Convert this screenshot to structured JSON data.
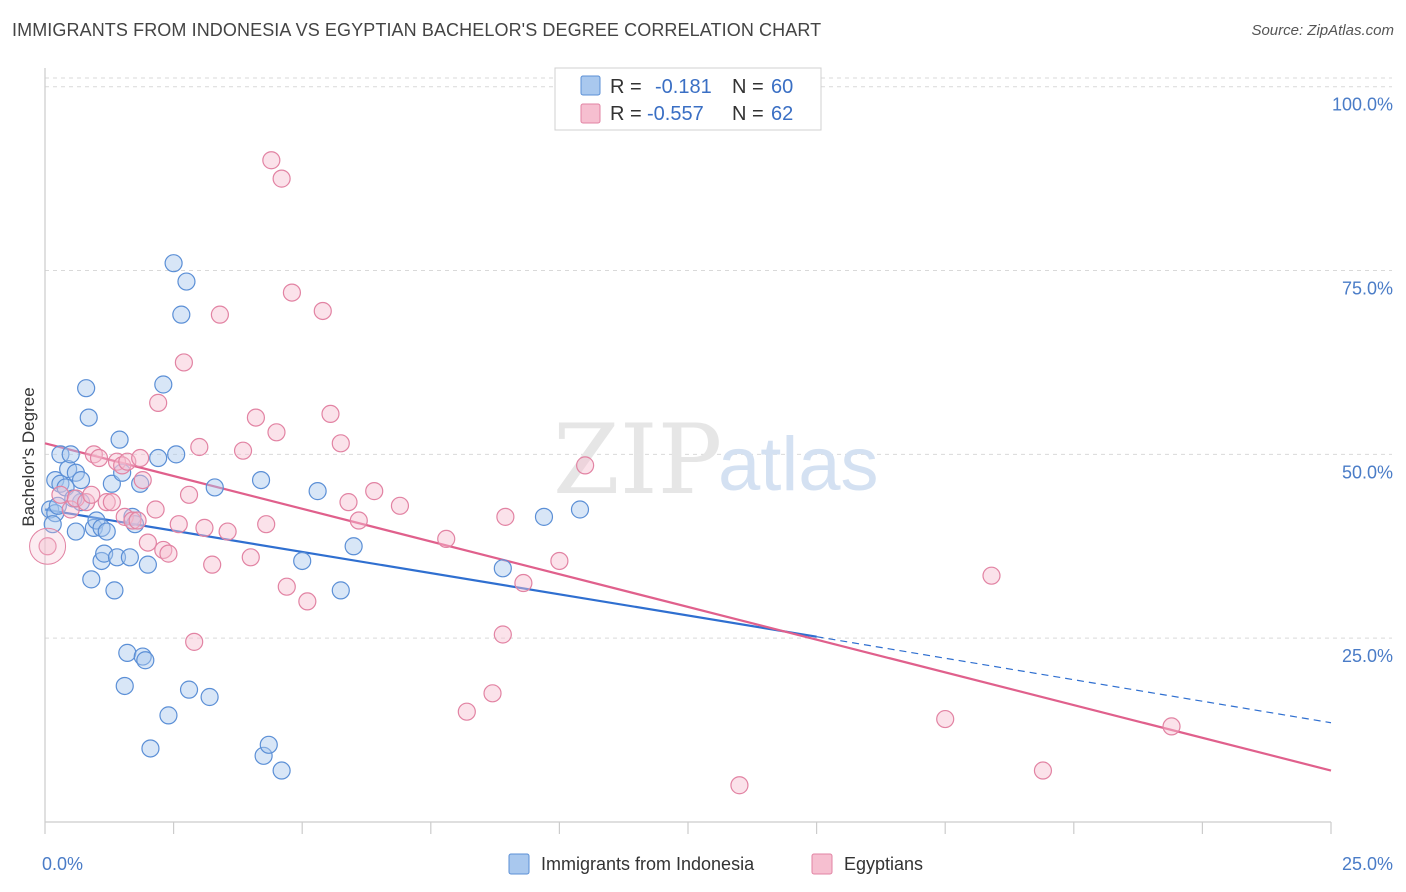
{
  "title": "IMMIGRANTS FROM INDONESIA VS EGYPTIAN BACHELOR'S DEGREE CORRELATION CHART",
  "source": "Source: ZipAtlas.com",
  "watermark": {
    "zip": "ZIP",
    "atlas": "atlas"
  },
  "colors": {
    "blue_fill": "#a9c8ee",
    "blue_stroke": "#5b8fd6",
    "blue_line": "#2f6fd0",
    "pink_fill": "#f6bfd0",
    "pink_stroke": "#e283a3",
    "pink_line": "#e0608c",
    "grid": "#d9d9d9",
    "axis_text": "#4a7cc7"
  },
  "legend": {
    "rows": [
      {
        "r_label": "R =",
        "r_value": "-0.181",
        "n_label": "N =",
        "n_value": "60"
      },
      {
        "r_label": "R =",
        "r_value": "-0.557",
        "n_label": "N =",
        "n_value": "62"
      }
    ]
  },
  "chart_data": {
    "type": "scatter",
    "title": "IMMIGRANTS FROM INDONESIA VS EGYPTIAN BACHELOR'S DEGREE CORRELATION CHART",
    "xlabel": "",
    "ylabel": "Bachelor's Degree",
    "xlim": [
      0,
      25
    ],
    "ylim": [
      0,
      102
    ],
    "x_ticks": [
      {
        "value": 0,
        "label": "0.0%"
      },
      {
        "value": 25,
        "label": "25.0%"
      }
    ],
    "y_ticks": [
      {
        "value": 25,
        "label": "25.0%"
      },
      {
        "value": 50,
        "label": "50.0%"
      },
      {
        "value": 75,
        "label": "75.0%"
      },
      {
        "value": 100,
        "label": "100.0%"
      }
    ],
    "grid": true,
    "legend_position": "top-center",
    "series": [
      {
        "name": "Immigrants from Indonesia",
        "color": "blue",
        "trend": {
          "x0": 0,
          "y0": 42.5,
          "x1": 15,
          "y1": 25.2,
          "x_solid_end": 15,
          "x_dashed_end": 25,
          "y_dashed_end": 13.5
        },
        "points": [
          [
            0.1,
            42.5
          ],
          [
            0.2,
            42
          ],
          [
            0.2,
            46.5
          ],
          [
            0.3,
            50
          ],
          [
            0.3,
            46
          ],
          [
            0.4,
            45.5
          ],
          [
            0.45,
            48
          ],
          [
            0.5,
            50
          ],
          [
            0.6,
            47.5
          ],
          [
            0.6,
            39.5
          ],
          [
            0.7,
            43.5
          ],
          [
            0.7,
            46.5
          ],
          [
            0.8,
            59
          ],
          [
            0.85,
            55
          ],
          [
            0.9,
            33
          ],
          [
            0.95,
            40
          ],
          [
            1.0,
            41
          ],
          [
            1.1,
            40
          ],
          [
            1.1,
            35.5
          ],
          [
            1.15,
            36.5
          ],
          [
            1.2,
            39.5
          ],
          [
            1.3,
            46
          ],
          [
            1.35,
            31.5
          ],
          [
            1.4,
            36
          ],
          [
            1.45,
            52
          ],
          [
            1.5,
            47.5
          ],
          [
            1.55,
            18.5
          ],
          [
            1.6,
            23
          ],
          [
            1.65,
            36
          ],
          [
            1.7,
            41.5
          ],
          [
            1.75,
            40.5
          ],
          [
            1.85,
            46
          ],
          [
            1.9,
            22.5
          ],
          [
            1.95,
            22
          ],
          [
            2.0,
            35
          ],
          [
            2.05,
            10
          ],
          [
            2.2,
            49.5
          ],
          [
            2.3,
            59.5
          ],
          [
            2.4,
            14.5
          ],
          [
            2.5,
            76
          ],
          [
            2.55,
            50
          ],
          [
            2.65,
            69
          ],
          [
            2.75,
            73.5
          ],
          [
            2.8,
            18
          ],
          [
            3.2,
            17
          ],
          [
            3.3,
            45.5
          ],
          [
            4.2,
            46.5
          ],
          [
            4.25,
            9
          ],
          [
            4.35,
            10.5
          ],
          [
            4.6,
            7
          ],
          [
            5.0,
            35.5
          ],
          [
            5.3,
            45
          ],
          [
            5.75,
            31.5
          ],
          [
            6.0,
            37.5
          ],
          [
            8.9,
            34.5
          ],
          [
            9.7,
            41.5
          ],
          [
            10.4,
            42.5
          ],
          [
            0.15,
            40.5
          ],
          [
            0.25,
            43
          ],
          [
            0.55,
            44
          ]
        ]
      },
      {
        "name": "Egyptians",
        "color": "pink",
        "trend": {
          "x0": 0,
          "y0": 51.5,
          "x1": 25,
          "y1": 7
        },
        "points": [
          [
            0.05,
            37.5
          ],
          [
            0.3,
            44.5
          ],
          [
            0.5,
            42.5
          ],
          [
            0.6,
            44
          ],
          [
            0.8,
            43.5
          ],
          [
            0.9,
            44.5
          ],
          [
            0.95,
            50
          ],
          [
            1.05,
            49.5
          ],
          [
            1.2,
            43.5
          ],
          [
            1.3,
            43.5
          ],
          [
            1.4,
            49
          ],
          [
            1.5,
            48.5
          ],
          [
            1.55,
            41.5
          ],
          [
            1.6,
            49
          ],
          [
            1.7,
            41
          ],
          [
            1.8,
            41
          ],
          [
            1.85,
            49.5
          ],
          [
            1.9,
            46.5
          ],
          [
            2.0,
            38
          ],
          [
            2.15,
            42.5
          ],
          [
            2.2,
            57
          ],
          [
            2.3,
            37
          ],
          [
            2.4,
            36.5
          ],
          [
            2.6,
            40.5
          ],
          [
            2.7,
            62.5
          ],
          [
            2.8,
            44.5
          ],
          [
            2.9,
            24.5
          ],
          [
            3.0,
            51
          ],
          [
            3.1,
            40
          ],
          [
            3.25,
            35
          ],
          [
            3.4,
            69
          ],
          [
            3.55,
            39.5
          ],
          [
            3.85,
            50.5
          ],
          [
            4.0,
            36
          ],
          [
            4.1,
            55
          ],
          [
            4.3,
            40.5
          ],
          [
            4.4,
            90
          ],
          [
            4.5,
            53
          ],
          [
            4.6,
            87.5
          ],
          [
            4.7,
            32
          ],
          [
            4.8,
            72
          ],
          [
            5.1,
            30
          ],
          [
            5.4,
            69.5
          ],
          [
            5.55,
            55.5
          ],
          [
            5.75,
            51.5
          ],
          [
            5.9,
            43.5
          ],
          [
            6.1,
            41
          ],
          [
            6.4,
            45
          ],
          [
            6.9,
            43
          ],
          [
            7.8,
            38.5
          ],
          [
            8.2,
            15
          ],
          [
            8.7,
            17.5
          ],
          [
            8.9,
            25.5
          ],
          [
            8.95,
            41.5
          ],
          [
            9.3,
            32.5
          ],
          [
            10.0,
            35.5
          ],
          [
            10.5,
            48.5
          ],
          [
            13.5,
            5
          ],
          [
            17.5,
            14
          ],
          [
            18.4,
            33.5
          ],
          [
            19.4,
            7
          ],
          [
            21.9,
            13
          ]
        ]
      }
    ]
  },
  "bottom_legend": {
    "items": [
      {
        "label": "Immigrants from Indonesia"
      },
      {
        "label": "Egyptians"
      }
    ]
  }
}
